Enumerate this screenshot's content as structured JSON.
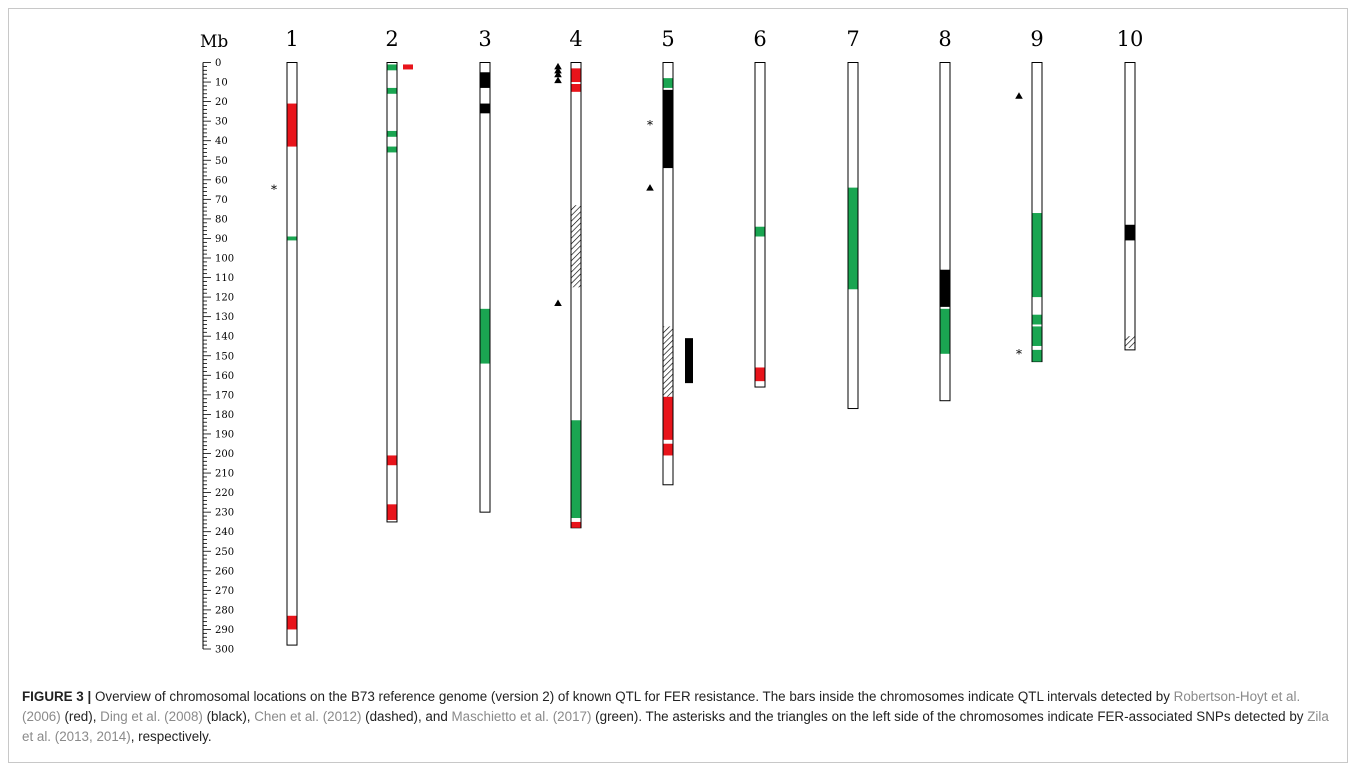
{
  "chart_data": {
    "type": "chromosome_map",
    "y_axis_label": "Mb",
    "y_ticks": [
      0,
      10,
      20,
      30,
      40,
      50,
      60,
      70,
      80,
      90,
      100,
      110,
      120,
      130,
      140,
      150,
      160,
      170,
      180,
      190,
      200,
      210,
      220,
      230,
      240,
      250,
      260,
      270,
      280,
      290,
      300
    ],
    "ylim": [
      0,
      300
    ],
    "legend_colors": {
      "Robertson-Hoyt et al. (2006)": "#e8141b",
      "Ding et al. (2008)": "#000000",
      "Chen et al. (2012)": "dashed",
      "Maschietto et al. (2017)": "#1aa551"
    },
    "chromosomes": [
      {
        "label": "1",
        "length": 298,
        "qtl": [
          {
            "start": 21,
            "end": 43,
            "study": "Robertson-Hoyt et al. (2006)"
          },
          {
            "start": 89,
            "end": 91,
            "study": "Maschietto et al. (2017)"
          },
          {
            "start": 283,
            "end": 290,
            "study": "Robertson-Hoyt et al. (2006)"
          }
        ],
        "outside_qtl": [],
        "asterisks": [
          64
        ],
        "triangles": []
      },
      {
        "label": "2",
        "length": 235,
        "qtl": [
          {
            "start": 1,
            "end": 4,
            "study": "Maschietto et al. (2017)"
          },
          {
            "start": 13,
            "end": 16,
            "study": "Maschietto et al. (2017)"
          },
          {
            "start": 35,
            "end": 38,
            "study": "Maschietto et al. (2017)"
          },
          {
            "start": 43,
            "end": 46,
            "study": "Maschietto et al. (2017)"
          },
          {
            "start": 201,
            "end": 206,
            "study": "Robertson-Hoyt et al. (2006)"
          },
          {
            "start": 226,
            "end": 234,
            "study": "Robertson-Hoyt et al. (2006)"
          }
        ],
        "outside_qtl": [
          {
            "start": 1,
            "end": 3,
            "study": "Robertson-Hoyt et al. (2006)"
          }
        ],
        "asterisks": [],
        "triangles": []
      },
      {
        "label": "3",
        "length": 230,
        "qtl": [
          {
            "start": 5,
            "end": 13,
            "study": "Ding et al. (2008)"
          },
          {
            "start": 21,
            "end": 26,
            "study": "Ding et al. (2008)"
          },
          {
            "start": 126,
            "end": 154,
            "study": "Maschietto et al. (2017)"
          }
        ],
        "outside_qtl": [],
        "asterisks": [],
        "triangles": []
      },
      {
        "label": "4",
        "length": 238,
        "qtl": [
          {
            "start": 3,
            "end": 10,
            "study": "Robertson-Hoyt et al. (2006)"
          },
          {
            "start": 11,
            "end": 15,
            "study": "Robertson-Hoyt et al. (2006)"
          },
          {
            "start": 73,
            "end": 115,
            "study": "Chen et al. (2012)"
          },
          {
            "start": 183,
            "end": 233,
            "study": "Maschietto et al. (2017)"
          },
          {
            "start": 235,
            "end": 238,
            "study": "Robertson-Hoyt et al. (2006)"
          }
        ],
        "outside_qtl": [],
        "asterisks": [],
        "triangles": [
          2,
          4,
          6,
          9,
          123
        ]
      },
      {
        "label": "5",
        "length": 216,
        "qtl": [
          {
            "start": 8,
            "end": 13,
            "study": "Maschietto et al. (2017)"
          },
          {
            "start": 14,
            "end": 54,
            "study": "Ding et al. (2008)"
          },
          {
            "start": 135,
            "end": 171,
            "study": "Chen et al. (2012)"
          },
          {
            "start": 171,
            "end": 193,
            "study": "Robertson-Hoyt et al. (2006)"
          },
          {
            "start": 195,
            "end": 201,
            "study": "Robertson-Hoyt et al. (2006)"
          }
        ],
        "outside_qtl": [
          {
            "start": 141,
            "end": 164,
            "study": "Ding et al. (2008)"
          }
        ],
        "asterisks": [
          31
        ],
        "triangles": [
          64
        ]
      },
      {
        "label": "6",
        "length": 166,
        "qtl": [
          {
            "start": 84,
            "end": 89,
            "study": "Maschietto et al. (2017)"
          },
          {
            "start": 156,
            "end": 163,
            "study": "Robertson-Hoyt et al. (2006)"
          }
        ],
        "outside_qtl": [],
        "asterisks": [],
        "triangles": []
      },
      {
        "label": "7",
        "length": 177,
        "qtl": [
          {
            "start": 64,
            "end": 116,
            "study": "Maschietto et al. (2017)"
          }
        ],
        "outside_qtl": [],
        "asterisks": [],
        "triangles": []
      },
      {
        "label": "8",
        "length": 173,
        "qtl": [
          {
            "start": 106,
            "end": 125,
            "study": "Ding et al. (2008)"
          },
          {
            "start": 126,
            "end": 149,
            "study": "Maschietto et al. (2017)"
          }
        ],
        "outside_qtl": [],
        "asterisks": [],
        "triangles": []
      },
      {
        "label": "9",
        "length": 153,
        "qtl": [
          {
            "start": 77,
            "end": 120,
            "study": "Maschietto et al. (2017)"
          },
          {
            "start": 129,
            "end": 134,
            "study": "Maschietto et al. (2017)"
          },
          {
            "start": 135,
            "end": 145,
            "study": "Maschietto et al. (2017)"
          },
          {
            "start": 147,
            "end": 153,
            "study": "Maschietto et al. (2017)"
          }
        ],
        "outside_qtl": [],
        "asterisks": [
          148
        ],
        "triangles": [
          17
        ]
      },
      {
        "label": "10",
        "length": 147,
        "qtl": [
          {
            "start": 83,
            "end": 91,
            "study": "Ding et al. (2008)"
          },
          {
            "start": 140,
            "end": 146,
            "study": "Chen et al. (2012)"
          }
        ],
        "outside_qtl": [],
        "asterisks": [],
        "triangles": []
      }
    ]
  },
  "caption": {
    "lead": "FIGURE 3 |",
    "t1": " Overview of chromosomal locations on the B73 reference genome (version 2) of known QTL for FER resistance. The bars inside the chromosomes indicate QTL intervals detected by ",
    "ref1": "Robertson-Hoyt et al. (2006)",
    "t2": " (red), ",
    "ref2": "Ding et al. (2008)",
    "t3": " (black), ",
    "ref3": "Chen et al. (2012)",
    "t4": " (dashed), and ",
    "ref4": "Maschietto et al. (2017)",
    "t5": " (green). The asterisks and the triangles on the left side of the chromosomes indicate FER-associated SNPs detected by ",
    "ref5": "Zila et al. (2013, 2014)",
    "t6": ", respectively."
  }
}
